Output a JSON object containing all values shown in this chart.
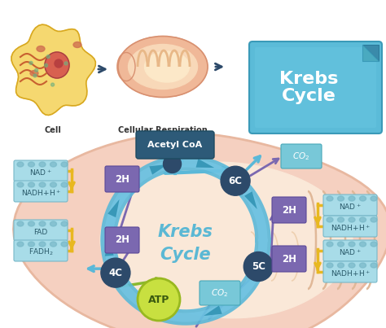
{
  "bg_color": "#ffffff",
  "title_top": "Krebs\nCycle",
  "title_top_color": "#ffffff",
  "title_top_bg_light": "#6ec6e0",
  "title_top_bg_dark": "#4aaac8",
  "cell_label": "Cell",
  "mito_label": "Cellular Respiration",
  "cycle_title": "Krebs\nCycle",
  "cycle_title_color": "#5bb8d4",
  "acetyl_coa_label": "Acetyl CoA",
  "acetyl_coa_bg": "#2d5a78",
  "node_color": "#2d4a6a",
  "node_text_color": "#ffffff",
  "cycle_color": "#5ab8d8",
  "mito_outer_color": "#f5d0b8",
  "mito_inner_color": "#f8e8d8",
  "label_bg": "#a8dce8",
  "label_edge": "#78b8c8",
  "label_text": "#2a5a6a",
  "two_h_bg": "#7b68b0",
  "two_h_edge": "#5a4898",
  "co2_bg": "#78c8d8",
  "co2_edge": "#48a8b8",
  "atp_bg": "#c8e040",
  "atp_edge": "#98b820",
  "atp_text": "#3a5a10",
  "arrow_blue": "#4aa8c8",
  "arrow_purple": "#7b68b0",
  "arrow_yellow": "#e8b820",
  "arrow_green": "#88b830",
  "arrow_dark": "#2d4a6a"
}
